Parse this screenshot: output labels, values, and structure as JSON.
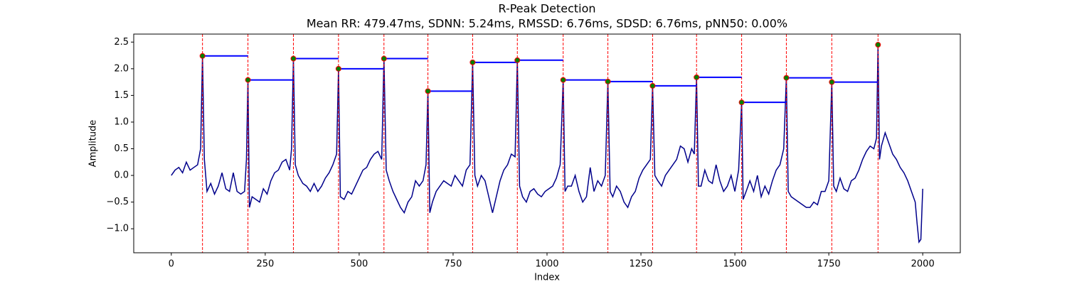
{
  "chart_data": {
    "type": "line",
    "title": "R-Peak Detection",
    "subtitle": "Mean RR: 479.47ms, SDNN: 5.24ms, RMSSD: 6.76ms, SDSD: 6.76ms, pNN50: 0.00%",
    "xlabel": "Index",
    "ylabel": "Amplitude",
    "color": "#00008b",
    "x": [
      0,
      10,
      20,
      30,
      40,
      50,
      60,
      70,
      78,
      83,
      88,
      95,
      105,
      115,
      125,
      135,
      145,
      155,
      165,
      175,
      185,
      195,
      200,
      204,
      208,
      215,
      225,
      235,
      245,
      255,
      265,
      275,
      285,
      295,
      305,
      315,
      320,
      325,
      330,
      338,
      350,
      360,
      370,
      380,
      390,
      400,
      410,
      420,
      430,
      440,
      445,
      450,
      460,
      470,
      480,
      490,
      500,
      510,
      520,
      530,
      540,
      550,
      560,
      566,
      572,
      580,
      590,
      600,
      610,
      620,
      630,
      640,
      650,
      660,
      670,
      678,
      683,
      688,
      695,
      705,
      715,
      725,
      735,
      745,
      755,
      765,
      775,
      785,
      795,
      802,
      808,
      815,
      825,
      835,
      845,
      855,
      865,
      875,
      885,
      895,
      905,
      915,
      921,
      927,
      935,
      945,
      955,
      965,
      975,
      985,
      995,
      1005,
      1015,
      1025,
      1035,
      1043,
      1048,
      1055,
      1065,
      1075,
      1085,
      1095,
      1105,
      1115,
      1125,
      1135,
      1145,
      1155,
      1162,
      1168,
      1175,
      1185,
      1195,
      1205,
      1215,
      1225,
      1235,
      1245,
      1255,
      1265,
      1275,
      1281,
      1287,
      1295,
      1305,
      1315,
      1325,
      1335,
      1345,
      1355,
      1365,
      1375,
      1385,
      1392,
      1398,
      1403,
      1410,
      1420,
      1430,
      1440,
      1450,
      1460,
      1470,
      1480,
      1490,
      1500,
      1510,
      1518,
      1522,
      1530,
      1540,
      1550,
      1560,
      1570,
      1580,
      1590,
      1600,
      1610,
      1620,
      1630,
      1637,
      1642,
      1650,
      1660,
      1670,
      1680,
      1690,
      1700,
      1710,
      1720,
      1730,
      1740,
      1750,
      1758,
      1763,
      1770,
      1780,
      1790,
      1800,
      1810,
      1820,
      1830,
      1840,
      1850,
      1860,
      1870,
      1877,
      1881,
      1885,
      1890,
      1900,
      1910,
      1920,
      1930,
      1940,
      1950,
      1960,
      1970,
      1980,
      1985,
      1990,
      1995,
      2000
    ],
    "values": [
      0.0,
      0.1,
      0.15,
      0.05,
      0.25,
      0.1,
      0.15,
      0.2,
      0.5,
      2.24,
      0.3,
      -0.3,
      -0.15,
      -0.35,
      -0.2,
      0.05,
      -0.25,
      -0.3,
      0.05,
      -0.3,
      -0.35,
      -0.3,
      0.3,
      1.79,
      -0.6,
      -0.4,
      -0.45,
      -0.5,
      -0.25,
      -0.35,
      -0.1,
      0.05,
      0.1,
      0.25,
      0.3,
      0.1,
      0.5,
      2.19,
      0.2,
      0.0,
      -0.15,
      -0.2,
      -0.3,
      -0.15,
      -0.3,
      -0.2,
      -0.05,
      0.05,
      0.2,
      0.4,
      2.0,
      -0.4,
      -0.45,
      -0.3,
      -0.35,
      -0.2,
      -0.05,
      0.1,
      0.15,
      0.3,
      0.4,
      0.45,
      0.3,
      2.19,
      0.1,
      -0.1,
      -0.3,
      -0.45,
      -0.6,
      -0.7,
      -0.5,
      -0.4,
      -0.1,
      -0.2,
      -0.1,
      0.2,
      1.58,
      -0.7,
      -0.5,
      -0.3,
      -0.2,
      -0.1,
      -0.15,
      -0.2,
      0.0,
      -0.1,
      -0.2,
      0.1,
      0.2,
      2.12,
      0.0,
      -0.2,
      0.0,
      -0.1,
      -0.4,
      -0.7,
      -0.4,
      -0.1,
      0.1,
      0.2,
      0.4,
      0.35,
      2.16,
      -0.2,
      -0.4,
      -0.5,
      -0.3,
      -0.25,
      -0.35,
      -0.4,
      -0.3,
      -0.25,
      -0.2,
      -0.05,
      0.2,
      1.79,
      -0.3,
      -0.2,
      -0.2,
      0.0,
      -0.3,
      -0.5,
      -0.4,
      0.15,
      -0.3,
      -0.1,
      -0.2,
      0.0,
      1.76,
      -0.3,
      -0.4,
      -0.2,
      -0.3,
      -0.5,
      -0.6,
      -0.4,
      -0.3,
      -0.05,
      0.1,
      0.2,
      0.3,
      1.68,
      0.0,
      -0.1,
      -0.2,
      0.0,
      0.1,
      0.2,
      0.3,
      0.55,
      0.5,
      0.25,
      0.5,
      0.4,
      1.84,
      -0.2,
      -0.2,
      0.1,
      -0.1,
      -0.15,
      0.2,
      -0.1,
      -0.3,
      -0.2,
      0.0,
      -0.3,
      0.1,
      1.37,
      -0.45,
      -0.3,
      -0.1,
      -0.3,
      0.0,
      -0.4,
      -0.2,
      -0.35,
      -0.1,
      0.1,
      0.2,
      0.5,
      1.83,
      -0.3,
      -0.4,
      -0.45,
      -0.5,
      -0.55,
      -0.6,
      -0.6,
      -0.5,
      -0.55,
      -0.3,
      -0.3,
      -0.1,
      1.75,
      -0.2,
      -0.3,
      -0.05,
      -0.25,
      -0.3,
      -0.1,
      -0.05,
      0.1,
      0.3,
      0.45,
      0.55,
      0.5,
      0.7,
      2.45,
      0.3,
      0.55,
      0.8,
      0.6,
      0.4,
      0.3,
      0.15,
      0.05,
      -0.1,
      -0.3,
      -0.5,
      -0.9,
      -1.25,
      -1.2,
      -0.25
    ],
    "peaks": {
      "marker_color": "#008000",
      "edge_color": "#ff0000",
      "vline_color": "#ff0000",
      "hline_color": "#0000ff",
      "x": [
        83,
        204,
        325,
        445,
        566,
        683,
        802,
        921,
        1043,
        1162,
        1281,
        1398,
        1518,
        1637,
        1758,
        1881
      ],
      "values": [
        2.24,
        1.79,
        2.19,
        2.0,
        2.19,
        1.58,
        2.12,
        2.16,
        1.79,
        1.76,
        1.68,
        1.84,
        1.37,
        1.83,
        1.75,
        2.45
      ]
    },
    "xlim": [
      -100,
      2100
    ],
    "ylim": [
      -1.45,
      2.65
    ],
    "xticks": [
      0,
      250,
      500,
      750,
      1000,
      1250,
      1500,
      1750,
      2000
    ],
    "yticks": [
      {
        "value": -1,
        "label": "−1.0"
      },
      {
        "value": -0.5,
        "label": "−0.5"
      },
      {
        "value": 0,
        "label": "0.0"
      },
      0.5,
      {
        "value": 1,
        "label": "1.0"
      },
      1.5,
      {
        "value": 2,
        "label": "2.0"
      },
      2.5
    ],
    "grid": false
  }
}
